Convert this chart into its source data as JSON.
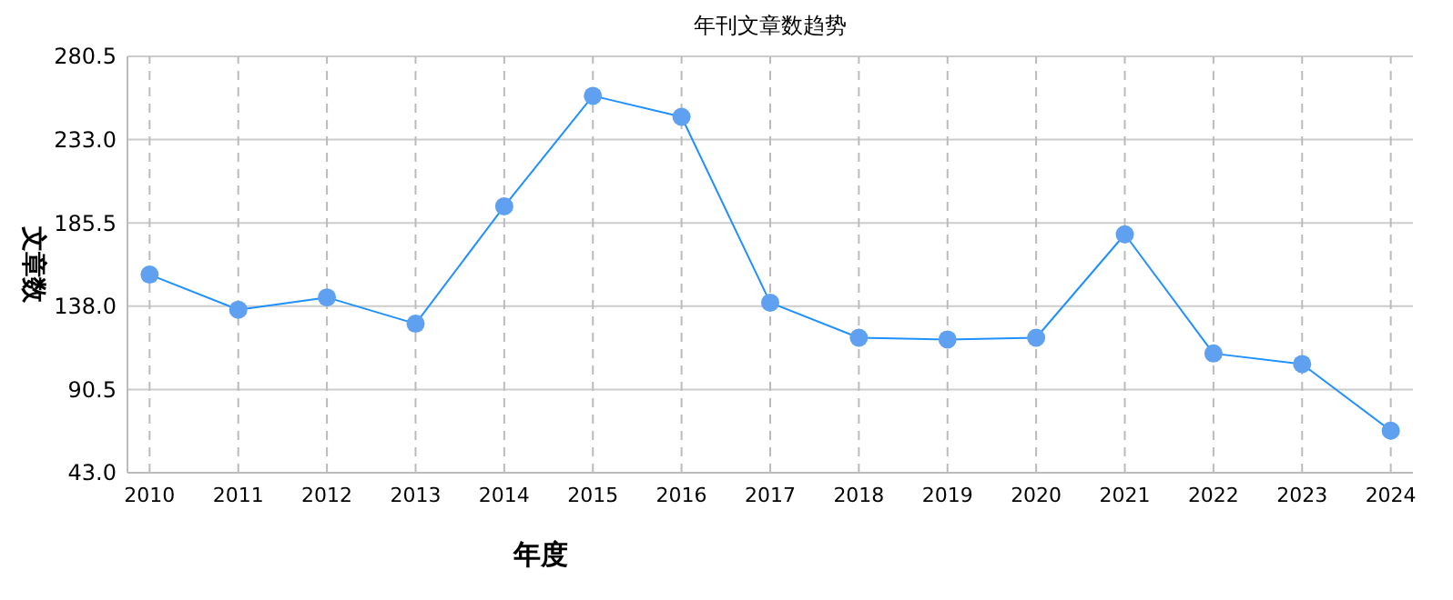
{
  "chart_data": {
    "type": "line",
    "title": "年刊文章数趋势",
    "xlabel": "年度",
    "ylabel": "文章数",
    "categories": [
      "2010",
      "2011",
      "2012",
      "2013",
      "2014",
      "2015",
      "2016",
      "2017",
      "2018",
      "2019",
      "2020",
      "2021",
      "2022",
      "2023",
      "2024"
    ],
    "series": [
      {
        "color": "#1e90ff",
        "values": [
          156,
          136,
          143,
          128,
          195,
          258,
          246,
          140,
          120,
          119,
          120,
          179,
          111,
          105,
          67
        ]
      }
    ],
    "ylim": [
      43,
      280.5
    ],
    "yticks": [
      {
        "value": 43,
        "label": "43.0"
      },
      {
        "value": 90.5,
        "label": "90.5"
      },
      {
        "value": 138,
        "label": "138.0"
      },
      {
        "value": 185.5,
        "label": "185.5"
      },
      {
        "value": 233,
        "label": "233.0"
      },
      {
        "value": 280.5,
        "label": "280.5"
      }
    ],
    "grid": true,
    "marker": "circle",
    "line_style": "solid"
  }
}
